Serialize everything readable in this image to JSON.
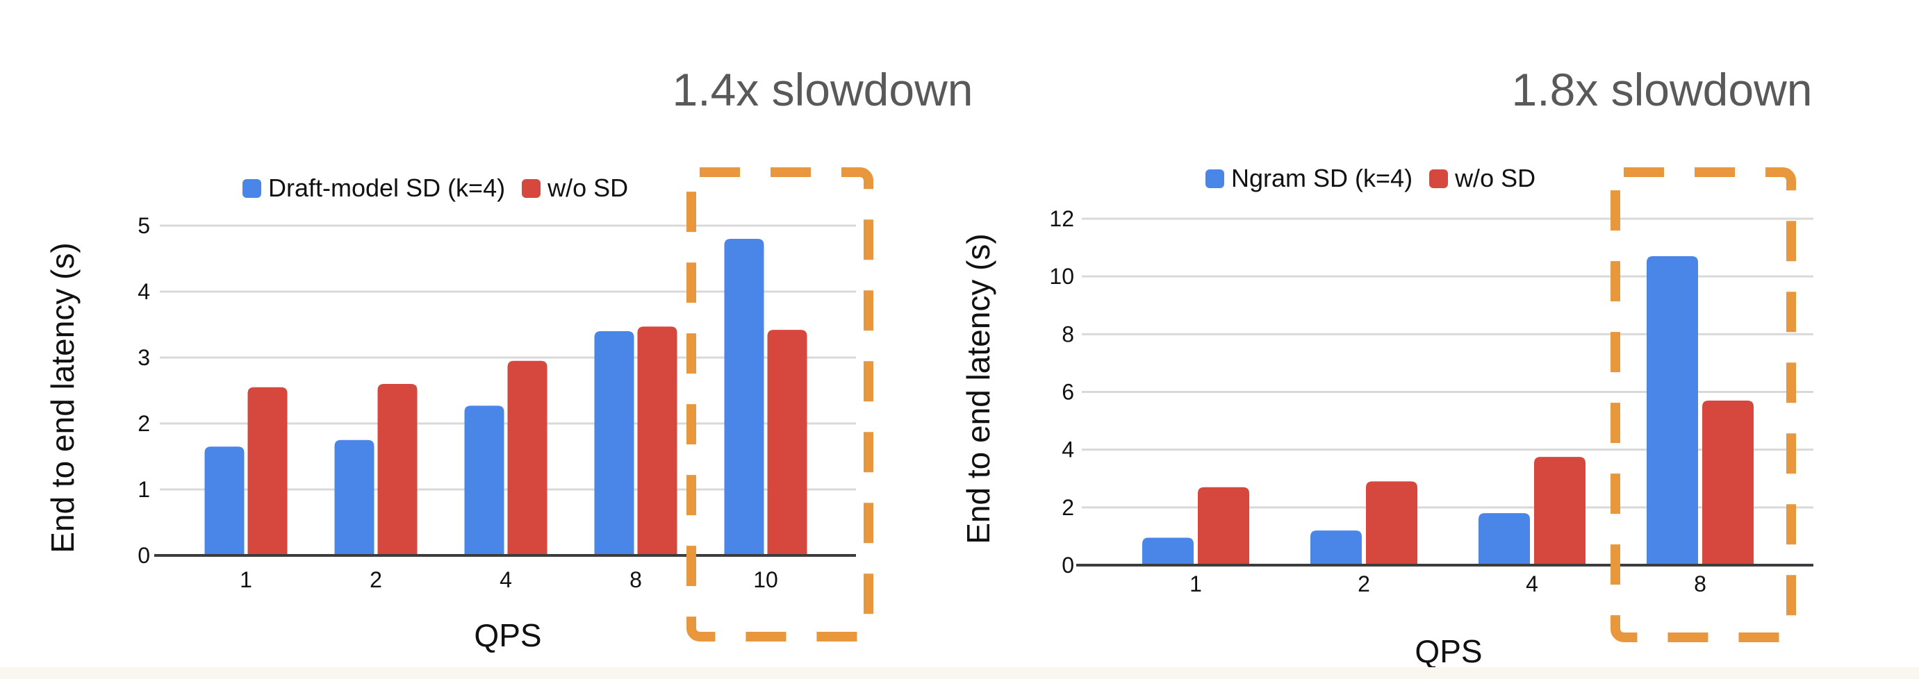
{
  "colors": {
    "sd_blue": "#4A86E8",
    "baseline_red": "#D6483D",
    "highlight_orange": "#E8973C",
    "gridline": "#D9D9D9",
    "axis_line": "#3D3D3D",
    "text": "#111111",
    "annotation_gray": "#595959",
    "footer_strip": "#FAF7F0"
  },
  "chart_data": [
    {
      "type": "bar",
      "title": "",
      "categories": [
        "1",
        "2",
        "4",
        "8",
        "10"
      ],
      "series": [
        {
          "name": "Draft-model SD (k=4)",
          "color": "#4A86E8",
          "values": [
            1.65,
            1.75,
            2.27,
            3.4,
            4.8
          ]
        },
        {
          "name": "w/o SD",
          "color": "#D6483D",
          "values": [
            2.55,
            2.6,
            2.95,
            3.47,
            3.42
          ]
        }
      ],
      "xlabel": "QPS",
      "ylabel": "End to end latency (s)",
      "ylim": [
        0,
        5
      ],
      "yticks": [
        0,
        1,
        2,
        3,
        4,
        5
      ],
      "grid": true,
      "legend_position": "top",
      "highlight": {
        "category": "10",
        "note": "1.4x slowdown"
      }
    },
    {
      "type": "bar",
      "title": "",
      "categories": [
        "1",
        "2",
        "4",
        "8"
      ],
      "series": [
        {
          "name": "Ngram SD (k=4)",
          "color": "#4A86E8",
          "values": [
            0.95,
            1.2,
            1.8,
            10.7
          ]
        },
        {
          "name": "w/o SD",
          "color": "#D6483D",
          "values": [
            2.7,
            2.9,
            3.75,
            5.7
          ]
        }
      ],
      "xlabel": "QPS",
      "ylabel": "End to end latency (s)",
      "ylim": [
        0,
        12
      ],
      "yticks": [
        0,
        2,
        4,
        6,
        8,
        10,
        12
      ],
      "grid": true,
      "legend_position": "top",
      "highlight": {
        "category": "8",
        "note": "1.8x slowdown"
      }
    }
  ]
}
